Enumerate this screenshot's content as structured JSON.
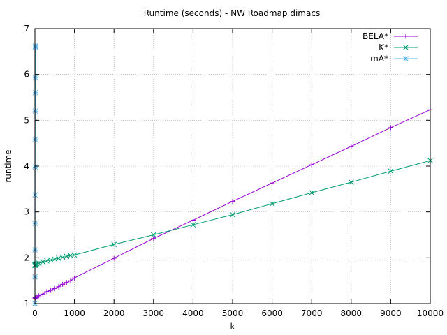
{
  "chart_data": {
    "type": "line",
    "title": "Runtime (seconds) - NW Roadmap dimacs",
    "xlabel": "k",
    "ylabel": "runtime",
    "xlim": [
      0,
      10000
    ],
    "ylim": [
      1,
      7
    ],
    "x_ticks": [
      "0",
      "1000",
      "2000",
      "3000",
      "4000",
      "5000",
      "6000",
      "7000",
      "8000",
      "9000",
      "10000"
    ],
    "y_ticks": [
      "1",
      "2",
      "3",
      "4",
      "5",
      "6",
      "7"
    ],
    "grid": true,
    "legend_position": "top-right",
    "series": [
      {
        "name": "BELA*",
        "color": "#9400d3",
        "marker": "plus",
        "x": [
          1,
          2,
          5,
          10,
          20,
          50,
          100,
          200,
          300,
          400,
          500,
          600,
          700,
          800,
          900,
          1000,
          2000,
          3000,
          4000,
          5000,
          6000,
          7000,
          8000,
          9000,
          10000
        ],
        "y": [
          1.12,
          1.12,
          1.12,
          1.13,
          1.13,
          1.14,
          1.17,
          1.21,
          1.26,
          1.29,
          1.33,
          1.37,
          1.42,
          1.46,
          1.5,
          1.56,
          1.99,
          2.42,
          2.82,
          3.23,
          3.63,
          4.03,
          4.43,
          4.84,
          5.23
        ]
      },
      {
        "name": "K*",
        "color": "#009e73",
        "marker": "cross",
        "x": [
          1,
          2,
          5,
          10,
          20,
          50,
          100,
          200,
          300,
          400,
          500,
          600,
          700,
          800,
          900,
          1000,
          2000,
          3000,
          4000,
          5000,
          6000,
          7000,
          8000,
          9000,
          10000
        ],
        "y": [
          1.83,
          1.84,
          1.85,
          1.85,
          1.86,
          1.87,
          1.88,
          1.91,
          1.93,
          1.95,
          1.97,
          1.99,
          2.01,
          2.03,
          2.05,
          2.06,
          2.29,
          2.5,
          2.72,
          2.94,
          3.18,
          3.42,
          3.65,
          3.89,
          4.12
        ]
      },
      {
        "name": "mA*",
        "color": "#56b4e9",
        "marker": "star",
        "x": [
          1,
          2,
          3,
          4,
          5,
          6,
          7,
          8,
          9,
          10,
          11,
          12
        ],
        "y": [
          1.0,
          1.58,
          2.17,
          2.75,
          3.37,
          3.98,
          4.58,
          5.2,
          5.6,
          5.93,
          6.6,
          6.62
        ]
      }
    ]
  }
}
